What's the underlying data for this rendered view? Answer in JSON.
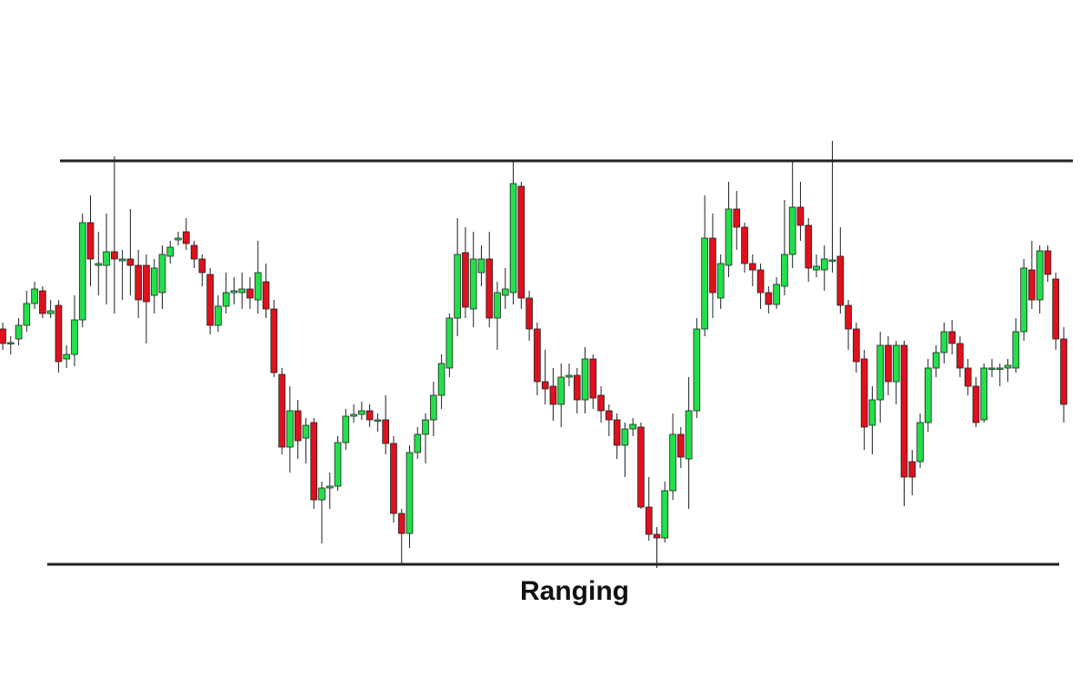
{
  "chart_data": {
    "type": "candlestick",
    "title": "Ranging",
    "ylim": [
      0,
      745
    ],
    "up_color": "#22e04a",
    "down_color": "#e0101c",
    "line_color": "#222222",
    "resistance": 568,
    "support": 124,
    "open": [
      383,
      367,
      372,
      387,
      411,
      425,
      400,
      409,
      350,
      355,
      393,
      500,
      453,
      453,
      468,
      458,
      460,
      453,
      453,
      420,
      423,
      463,
      481,
      490,
      475,
      460,
      443,
      387,
      408,
      423,
      423,
      427,
      415,
      435,
      405,
      333,
      253,
      293,
      263,
      280,
      195,
      208,
      210,
      258,
      287,
      289,
      293,
      282,
      283,
      257,
      180,
      158,
      247,
      267,
      283,
      310,
      340,
      395,
      467,
      405,
      445,
      460,
      395,
      420,
      423,
      540,
      417,
      383,
      325,
      320,
      300,
      330,
      332,
      305,
      350,
      310,
      293,
      283,
      255,
      273,
      275,
      187,
      157,
      153,
      205,
      267,
      240,
      293,
      383,
      483,
      417,
      453,
      515,
      495,
      455,
      448,
      423,
      410,
      430,
      465,
      517,
      497,
      448,
      448,
      458,
      463,
      409,
      383,
      350,
      277,
      305,
      365,
      325,
      365,
      237,
      237,
      280,
      340,
      357,
      380,
      367,
      340,
      320,
      283,
      339,
      339,
      340,
      340,
      380,
      448,
      415,
      469,
      438,
      372
    ],
    "high": [
      390,
      375,
      395,
      425,
      435,
      430,
      415,
      415,
      365,
      420,
      510,
      530,
      490,
      510,
      573,
      470,
      515,
      470,
      465,
      460,
      475,
      480,
      490,
      505,
      480,
      465,
      450,
      420,
      445,
      440,
      445,
      440,
      480,
      455,
      415,
      340,
      320,
      305,
      285,
      285,
      215,
      225,
      265,
      295,
      300,
      303,
      300,
      290,
      310,
      265,
      185,
      255,
      275,
      290,
      325,
      355,
      400,
      505,
      495,
      490,
      475,
      490,
      435,
      450,
      567,
      545,
      425,
      390,
      360,
      340,
      345,
      345,
      340,
      363,
      355,
      320,
      300,
      290,
      280,
      285,
      280,
      220,
      165,
      215,
      290,
      275,
      330,
      395,
      530,
      510,
      465,
      545,
      535,
      500,
      465,
      455,
      430,
      440,
      525,
      567,
      545,
      505,
      465,
      475,
      590,
      495,
      415,
      390,
      360,
      320,
      380,
      375,
      370,
      370,
      250,
      290,
      350,
      365,
      390,
      393,
      375,
      350,
      330,
      345,
      350,
      345,
      350,
      395,
      460,
      480,
      475,
      475,
      445,
      385
    ],
    "low": [
      360,
      355,
      365,
      380,
      405,
      395,
      395,
      335,
      340,
      342,
      385,
      430,
      420,
      410,
      400,
      415,
      420,
      395,
      367,
      400,
      405,
      455,
      475,
      470,
      450,
      430,
      377,
      380,
      400,
      410,
      405,
      405,
      400,
      395,
      330,
      245,
      225,
      240,
      235,
      185,
      147,
      185,
      205,
      250,
      280,
      283,
      275,
      270,
      245,
      170,
      125,
      142,
      240,
      235,
      265,
      295,
      330,
      375,
      395,
      385,
      430,
      385,
      360,
      405,
      410,
      405,
      370,
      310,
      300,
      282,
      275,
      320,
      290,
      290,
      295,
      280,
      265,
      240,
      220,
      265,
      185,
      150,
      120,
      148,
      195,
      230,
      185,
      285,
      375,
      395,
      405,
      440,
      470,
      445,
      430,
      405,
      400,
      405,
      420,
      450,
      480,
      435,
      440,
      425,
      445,
      400,
      360,
      335,
      250,
      245,
      280,
      310,
      300,
      188,
      200,
      230,
      270,
      330,
      345,
      355,
      330,
      310,
      275,
      280,
      330,
      320,
      325,
      335,
      370,
      405,
      400,
      435,
      360,
      280
    ],
    "close": [
      367,
      368,
      387,
      411,
      427,
      400,
      403,
      347,
      355,
      393,
      500,
      460,
      455,
      468,
      460,
      460,
      453,
      415,
      413,
      450,
      465,
      473,
      483,
      477,
      460,
      445,
      387,
      408,
      423,
      425,
      427,
      417,
      445,
      405,
      335,
      253,
      293,
      260,
      277,
      195,
      208,
      210,
      258,
      287,
      289,
      293,
      283,
      283,
      257,
      180,
      158,
      247,
      267,
      283,
      310,
      345,
      395,
      465,
      407,
      460,
      460,
      395,
      423,
      427,
      543,
      417,
      383,
      325,
      317,
      300,
      330,
      332,
      305,
      350,
      307,
      293,
      283,
      255,
      273,
      278,
      187,
      157,
      153,
      205,
      267,
      242,
      293,
      383,
      483,
      423,
      455,
      515,
      495,
      455,
      448,
      423,
      410,
      432,
      465,
      517,
      497,
      450,
      452,
      460,
      459,
      409,
      383,
      347,
      275,
      305,
      365,
      325,
      365,
      220,
      220,
      280,
      340,
      357,
      380,
      367,
      340,
      320,
      280,
      340,
      340,
      340,
      343,
      380,
      450,
      415,
      469,
      443,
      372,
      300
    ]
  }
}
